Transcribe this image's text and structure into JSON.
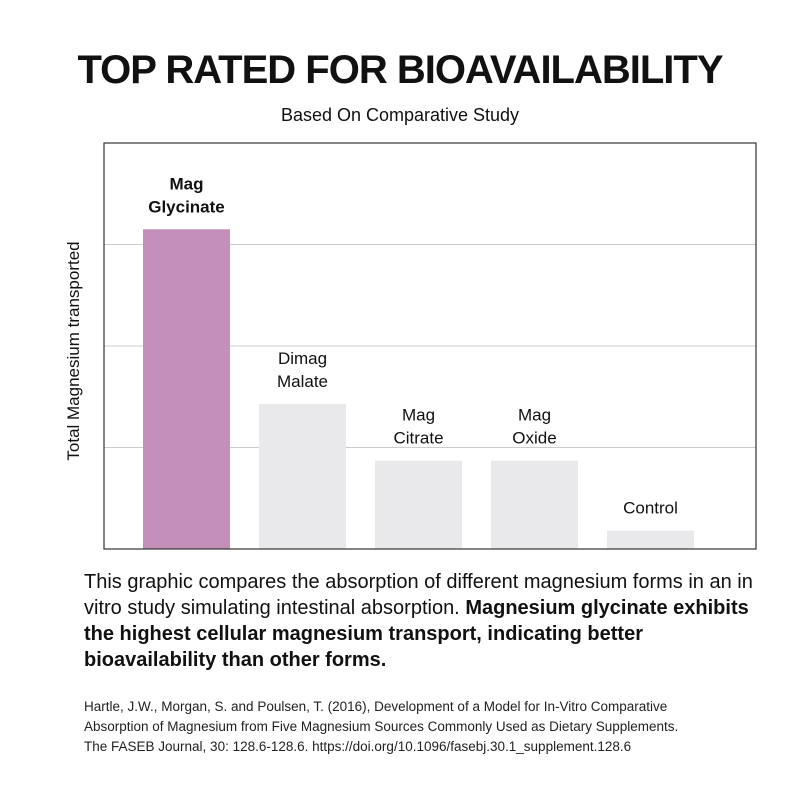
{
  "header": {
    "title": "TOP RATED FOR BIOAVAILABILITY",
    "subtitle": "Based On Comparative Study"
  },
  "chart_data": {
    "type": "bar",
    "title": "",
    "xlabel": "",
    "ylabel": "Total Magnesium transported",
    "ylim": [
      0,
      4
    ],
    "grid": true,
    "legend": "none",
    "tick_labels_shown": false,
    "categories": [
      [
        "Mag",
        "Glycinate"
      ],
      [
        "Dimag",
        "Malate"
      ],
      [
        "Mag",
        "Citrate"
      ],
      [
        "Mag",
        "Oxide"
      ],
      [
        "Control"
      ]
    ],
    "values": [
      3.15,
      1.43,
      0.87,
      0.87,
      0.18
    ],
    "highlight_index": 0,
    "colors": {
      "highlight": "#c48fb8",
      "bar": "#e9e9ec",
      "grid": "#cccccc",
      "frame": "#333333"
    }
  },
  "description": {
    "text": "This graphic compares the absorption of different magnesium forms in an in vitro study simulating intestinal absorption.",
    "bold_text": "Magnesium glycinate exhibits the highest cellular magnesium transport, indicating better bioavailability than other forms."
  },
  "citation": {
    "lines": [
      "Hartle, J.W., Morgan, S. and Poulsen, T. (2016), Development of a Model for In-Vitro Comparative",
      "Absorption of Magnesium from Five Magnesium Sources Commonly Used as Dietary Supplements.",
      "The FASEB Journal, 30: 128.6-128.6. https://doi.org/10.1096/fasebj.30.1_supplement.128.6"
    ]
  }
}
